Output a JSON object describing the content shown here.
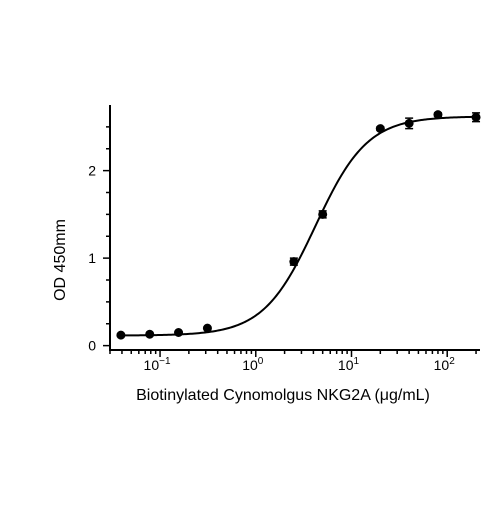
{
  "chart_data": {
    "type": "scatter",
    "title": "",
    "xlabel": "Biotinylated Cynomolgus NKG2A (μg/mL)",
    "ylabel": "OD 450mm",
    "xscale": "log",
    "xlim": [
      0.03,
      220
    ],
    "ylim": [
      -0.05,
      2.75
    ],
    "grid": false,
    "legend": "none",
    "x_ticks": [
      {
        "value": 0.1,
        "base": "10",
        "exp": "−1"
      },
      {
        "value": 1,
        "base": "10",
        "exp": "0"
      },
      {
        "value": 10,
        "base": "10",
        "exp": "1"
      },
      {
        "value": 100,
        "base": "10",
        "exp": "2"
      }
    ],
    "y_ticks": [
      {
        "value": 0,
        "label": "0"
      },
      {
        "value": 1,
        "label": "1"
      },
      {
        "value": 2,
        "label": "2"
      }
    ],
    "series": [
      {
        "points": [
          {
            "x": 0.039,
            "y": 0.12,
            "err": 0.01
          },
          {
            "x": 0.078,
            "y": 0.13,
            "err": 0.01
          },
          {
            "x": 0.156,
            "y": 0.15,
            "err": 0.01
          },
          {
            "x": 0.3125,
            "y": 0.2,
            "err": 0.01
          },
          {
            "x": 2.5,
            "y": 0.96,
            "err": 0.04
          },
          {
            "x": 5.0,
            "y": 1.5,
            "err": 0.04
          },
          {
            "x": 20,
            "y": 2.48,
            "err": 0.02
          },
          {
            "x": 40,
            "y": 2.54,
            "err": 0.06
          },
          {
            "x": 80,
            "y": 2.64,
            "err": 0.02
          },
          {
            "x": 200,
            "y": 2.61,
            "err": 0.05
          }
        ],
        "fit": {
          "model": "4PL",
          "bottom": 0.115,
          "top": 2.62,
          "ec50": 4.2,
          "hill": 1.6
        },
        "color": "#000000"
      }
    ]
  }
}
